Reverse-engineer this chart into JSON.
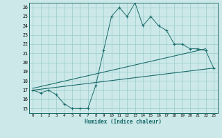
{
  "title": "",
  "xlabel": "Humidex (Indice chaleur)",
  "xlim": [
    -0.5,
    23.5
  ],
  "ylim": [
    14.5,
    26.5
  ],
  "xticks": [
    0,
    1,
    2,
    3,
    4,
    5,
    6,
    7,
    8,
    9,
    10,
    11,
    12,
    13,
    14,
    15,
    16,
    17,
    18,
    19,
    20,
    21,
    22,
    23
  ],
  "yticks": [
    15,
    16,
    17,
    18,
    19,
    20,
    21,
    22,
    23,
    24,
    25,
    26
  ],
  "bg_color": "#cce8e8",
  "grid_color": "#99cccc",
  "line_color": "#1a6b6b",
  "line1_x": [
    0,
    1,
    2,
    3,
    4,
    5,
    6,
    7,
    8,
    9,
    10,
    11,
    12,
    13,
    14,
    15,
    16,
    17,
    18,
    19,
    20,
    21,
    22,
    23
  ],
  "line1_y": [
    17.0,
    16.7,
    17.0,
    16.5,
    15.5,
    15.0,
    15.0,
    15.0,
    17.5,
    21.3,
    25.0,
    26.0,
    25.0,
    26.5,
    24.0,
    25.0,
    24.0,
    23.5,
    22.0,
    22.0,
    21.5,
    21.5,
    21.3,
    19.4
  ],
  "line2_x": [
    0,
    22
  ],
  "line2_y": [
    17.2,
    21.5
  ],
  "line3_x": [
    0,
    23
  ],
  "line3_y": [
    17.0,
    19.4
  ]
}
